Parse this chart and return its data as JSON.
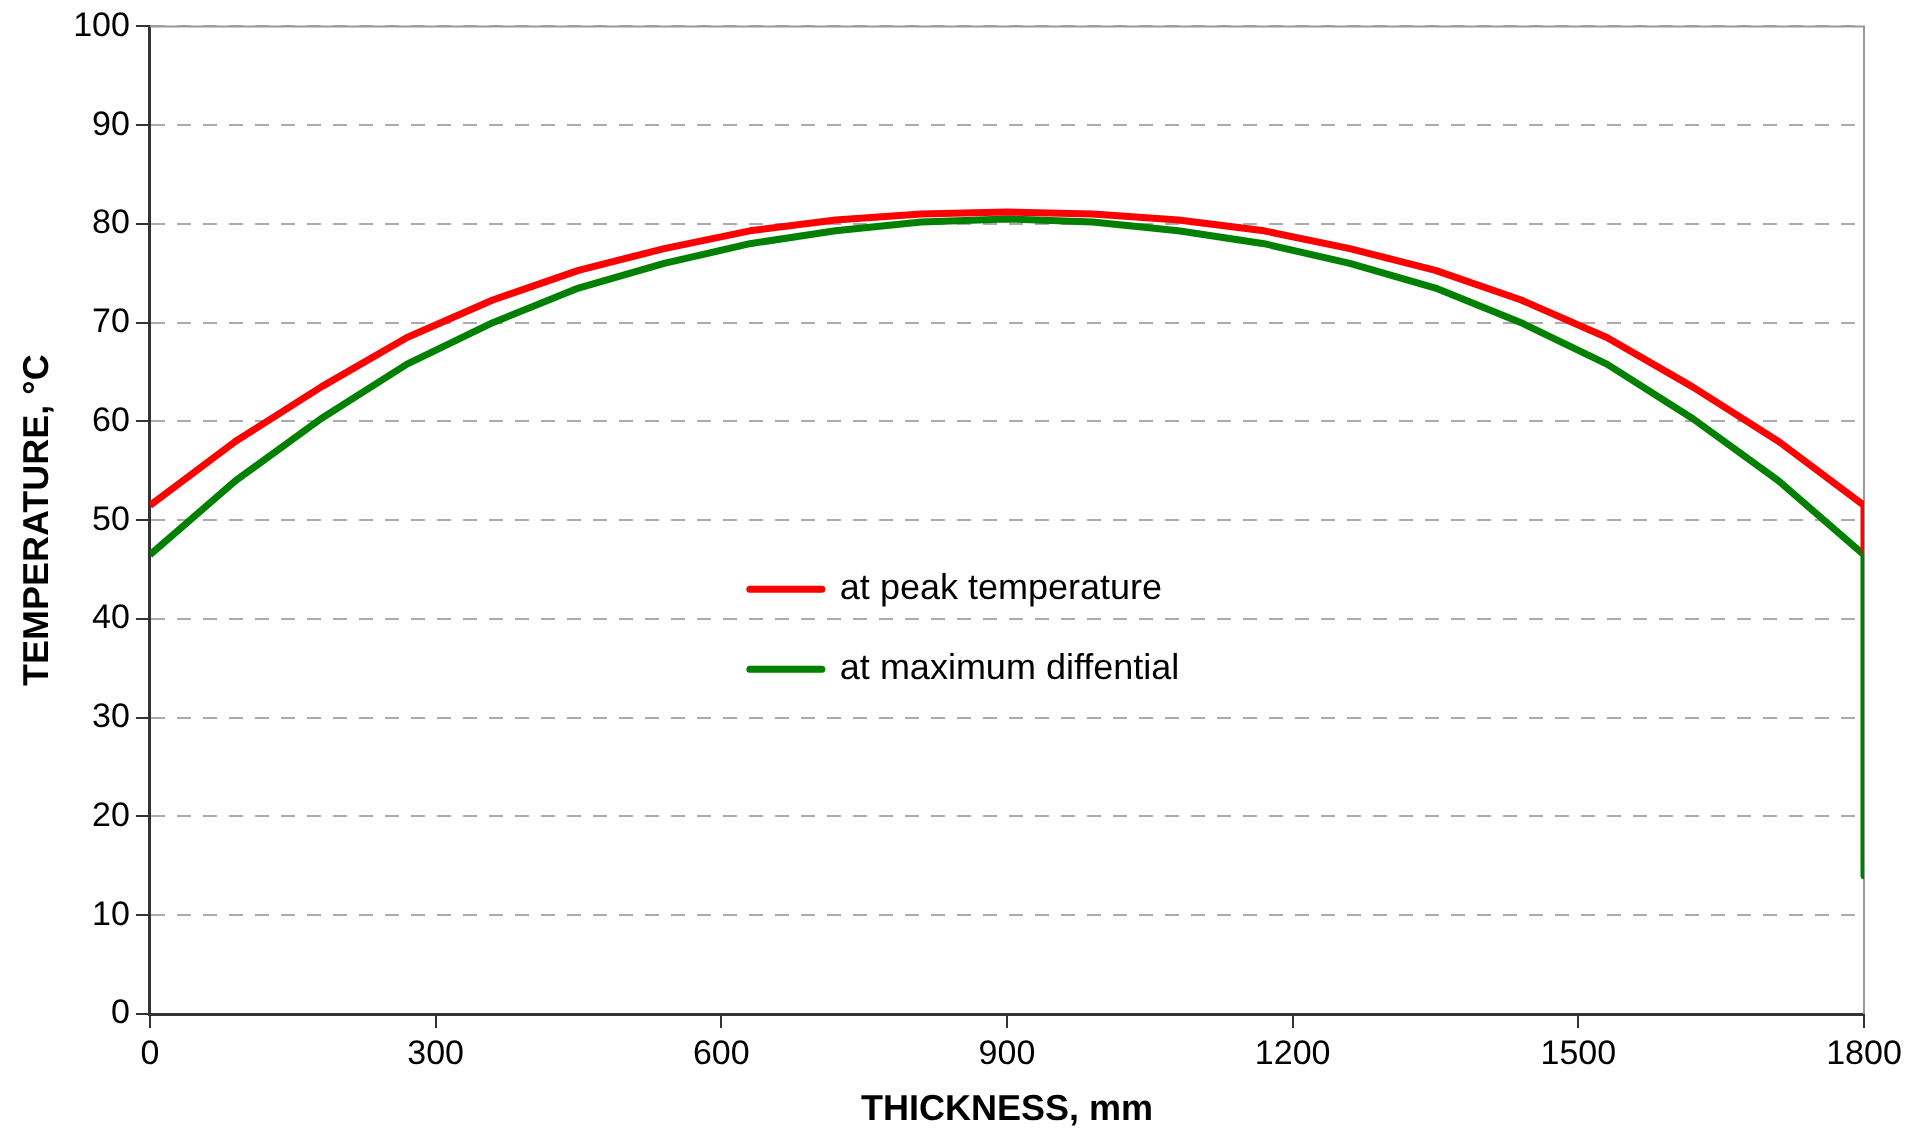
{
  "chart_data": {
    "type": "line",
    "xlabel": "THICKNESS, mm",
    "ylabel": "TEMPERATURE, °C",
    "x": [
      0,
      90,
      180,
      270,
      360,
      450,
      540,
      630,
      720,
      810,
      900,
      990,
      1080,
      1170,
      1260,
      1350,
      1440,
      1530,
      1620,
      1710,
      1800,
      1800
    ],
    "series": [
      {
        "name": "at peak temperature",
        "color": "#ff0000",
        "values": [
          51.5,
          58,
          63.5,
          68.5,
          72.3,
          75.3,
          77.5,
          79.3,
          80.4,
          81,
          81.2,
          81,
          80.4,
          79.3,
          77.5,
          75.3,
          72.3,
          68.5,
          63.5,
          58,
          51.5,
          47
        ]
      },
      {
        "name": "at maximum diffential",
        "color": "#008000",
        "values": [
          46.5,
          54,
          60.3,
          65.8,
          70,
          73.5,
          76,
          78,
          79.3,
          80.2,
          80.5,
          80.2,
          79.3,
          78,
          76,
          73.5,
          70,
          65.8,
          60.3,
          54,
          46.5,
          14
        ]
      }
    ],
    "xlim": [
      0,
      1800
    ],
    "xticks": [
      0,
      300,
      600,
      900,
      1200,
      1500,
      1800
    ],
    "ylim": [
      0,
      100
    ],
    "yticks": [
      0,
      10,
      20,
      30,
      40,
      50,
      60,
      70,
      80,
      90,
      100
    ],
    "grid": "y",
    "legend": "center",
    "marker": "none",
    "line_style": "solid"
  }
}
